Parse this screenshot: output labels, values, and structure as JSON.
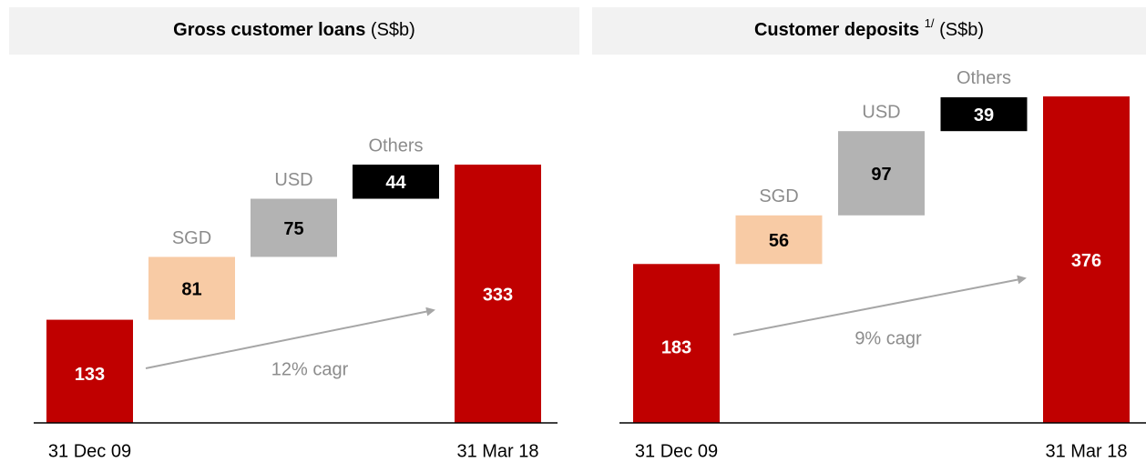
{
  "chart_data": [
    {
      "type": "waterfall",
      "title": "Gross customer loans",
      "title_unit": "(S$b)",
      "categories": [
        "31 Dec 09",
        "SGD",
        "USD",
        "Others",
        "31 Mar 18"
      ],
      "values": [
        133,
        81,
        75,
        44,
        333
      ],
      "colors": [
        "#c00000",
        "#f8cba5",
        "#b3b3b3",
        "#000000",
        "#c00000"
      ],
      "annotation": "12% cagr"
    },
    {
      "type": "waterfall",
      "title": "Customer deposits",
      "title_superscript": "1/",
      "title_unit": "(S$b)",
      "categories": [
        "31 Dec 09",
        "SGD",
        "USD",
        "Others",
        "31 Mar 18"
      ],
      "values": [
        183,
        56,
        97,
        39,
        376
      ],
      "colors": [
        "#c00000",
        "#f8cba5",
        "#b3b3b3",
        "#000000",
        "#c00000"
      ],
      "annotation": "9% cagr"
    }
  ]
}
